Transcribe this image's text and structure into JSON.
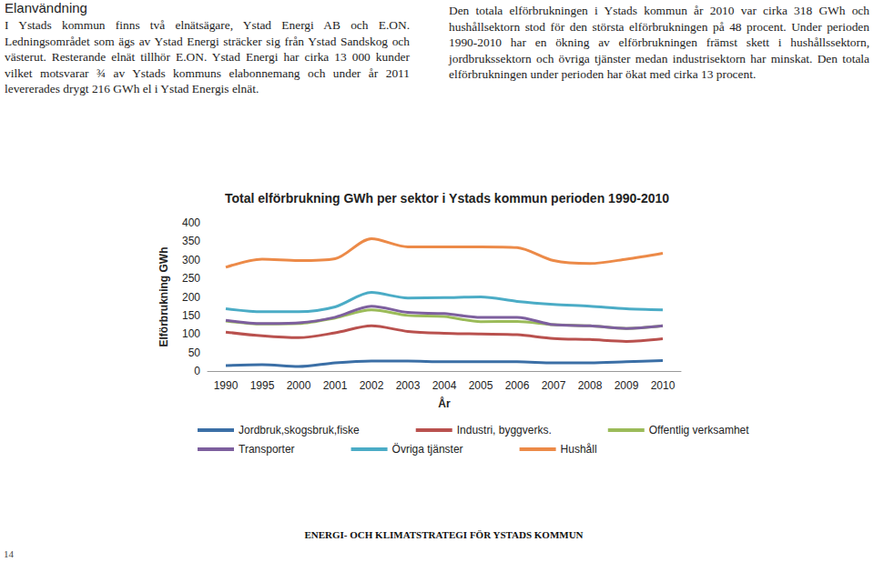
{
  "left_column": {
    "heading": "Elanvändning",
    "text": "I Ystads kommun finns två elnätsägare, Ystad Energi AB och E.ON. Ledningsområdet som ägs av Ystad Energi sträcker sig från Ystad Sandskog och västerut. Resterande elnät tillhör E.ON. Ystad Energi har cirka 13 000 kunder vilket motsvarar ¾ av Ystads kommuns elabonnemang och under år 2011 levererades drygt 216 GWh el i Ystad Energis elnät."
  },
  "right_column": {
    "text": "Den totala elförbrukningen i Ystads kommun år 2010 var cirka 318 GWh och hushållsektorn stod för den största elförbrukningen på 48 procent. Under perioden 1990-2010 har en ökning av elförbrukningen främst skett i hushållssektorn, jordbrukssektorn och övriga tjänster medan industrisektorn har minskat. Den totala elförbrukningen under perioden har ökat med cirka 13 procent."
  },
  "chart_data": {
    "type": "line",
    "title": "Total elförbrukning GWh per sektor i Ystads kommun perioden 1990-2010",
    "x_label": "År",
    "y_label": "Elförbrukning GWh",
    "categories": [
      "1990",
      "1995",
      "2000",
      "2001",
      "2002",
      "2003",
      "2004",
      "2005",
      "2006",
      "2007",
      "2008",
      "2009",
      "2010"
    ],
    "series": [
      {
        "name": "Jordbruk,skogsbruk,fiske",
        "color": "#3b6fa6",
        "values": [
          15,
          17,
          12,
          22,
          27,
          27,
          25,
          25,
          25,
          22,
          22,
          25,
          28
        ]
      },
      {
        "name": "Industri, byggverks.",
        "color": "#b9514e",
        "values": [
          105,
          95,
          90,
          103,
          122,
          107,
          102,
          100,
          98,
          88,
          85,
          80,
          87
        ]
      },
      {
        "name": "Offentlig verksamhet",
        "color": "#9bbb59",
        "values": [
          135,
          127,
          128,
          143,
          165,
          150,
          147,
          133,
          134,
          125,
          122,
          115,
          122
        ]
      },
      {
        "name": "Transporter",
        "color": "#7d5f9e",
        "values": [
          137,
          128,
          130,
          145,
          175,
          158,
          155,
          145,
          145,
          125,
          122,
          115,
          122
        ]
      },
      {
        "name": "Övriga tjänster",
        "color": "#4bacc6",
        "values": [
          168,
          160,
          160,
          173,
          212,
          197,
          198,
          200,
          188,
          180,
          175,
          168,
          165
        ]
      },
      {
        "name": "Hushåll",
        "color": "#ec8a48",
        "values": [
          280,
          302,
          298,
          303,
          357,
          335,
          335,
          335,
          333,
          298,
          290,
          302,
          318
        ]
      }
    ],
    "ylim": [
      0,
      400
    ],
    "yticks": [
      0,
      50,
      100,
      150,
      200,
      250,
      300,
      350,
      400
    ],
    "grid": false,
    "legend": "bottom"
  },
  "page": {
    "footer": "ENERGI- OCH KLIMATSTRATEGI FÖR YSTADS KOMMUN",
    "number": "14"
  }
}
